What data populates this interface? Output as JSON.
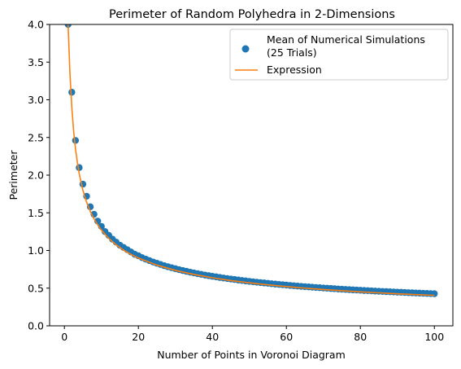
{
  "colors": {
    "scatter": "#1f77b4",
    "line": "#ff7f0e",
    "axes": "#000000",
    "background": "#ffffff"
  },
  "chart_data": {
    "type": "scatter",
    "title": "Perimeter of Random Polyhedra in 2-Dimensions",
    "xlabel": "Number of Points in Voronoi Diagram",
    "ylabel": "Perimeter",
    "xlim": [
      -4,
      105
    ],
    "ylim": [
      0,
      4.0
    ],
    "x_ticks": [
      0,
      20,
      40,
      60,
      80,
      100
    ],
    "x_tick_labels": [
      "0",
      "20",
      "40",
      "60",
      "80",
      "100"
    ],
    "y_ticks": [
      0,
      0.5,
      1.0,
      1.5,
      2.0,
      2.5,
      3.0,
      3.5,
      4.0
    ],
    "y_tick_labels": [
      "0.0",
      "0.5",
      "1.0",
      "1.5",
      "2.0",
      "2.5",
      "3.0",
      "3.5",
      "4.0"
    ],
    "grid": false,
    "legend": {
      "position": "top-right",
      "entries": [
        {
          "label_lines": [
            "Mean of Numerical Simulations",
            "(25 Trials)"
          ],
          "marker": "circle",
          "color": "#1f77b4"
        },
        {
          "label_lines": [
            "Expression"
          ],
          "marker": "line",
          "color": "#ff7f0e"
        }
      ]
    },
    "series": [
      {
        "name": "Mean of Numerical Simulations (25 Trials)",
        "kind": "scatter",
        "color": "#1f77b4",
        "x": [
          1,
          2,
          3,
          4,
          5,
          6,
          7,
          8,
          9,
          10,
          11,
          12,
          13,
          14,
          15,
          16,
          17,
          18,
          19,
          20,
          21,
          22,
          23,
          24,
          25,
          26,
          27,
          28,
          29,
          30,
          31,
          32,
          33,
          34,
          35,
          36,
          37,
          38,
          39,
          40,
          41,
          42,
          43,
          44,
          45,
          46,
          47,
          48,
          49,
          50,
          51,
          52,
          53,
          54,
          55,
          56,
          57,
          58,
          59,
          60,
          61,
          62,
          63,
          64,
          65,
          66,
          67,
          68,
          69,
          70,
          71,
          72,
          73,
          74,
          75,
          76,
          77,
          78,
          79,
          80,
          81,
          82,
          83,
          84,
          85,
          86,
          87,
          88,
          89,
          90,
          91,
          92,
          93,
          94,
          95,
          96,
          97,
          98,
          99,
          100
        ],
        "y": [
          4.0,
          3.1,
          2.46,
          2.1,
          1.88,
          1.72,
          1.58,
          1.48,
          1.39,
          1.32,
          1.25,
          1.2,
          1.15,
          1.11,
          1.07,
          1.04,
          1.01,
          0.98,
          0.95,
          0.93,
          0.905,
          0.885,
          0.865,
          0.847,
          0.83,
          0.814,
          0.798,
          0.784,
          0.771,
          0.758,
          0.745,
          0.734,
          0.723,
          0.712,
          0.702,
          0.692,
          0.683,
          0.674,
          0.666,
          0.657,
          0.65,
          0.642,
          0.635,
          0.628,
          0.621,
          0.615,
          0.608,
          0.602,
          0.596,
          0.59,
          0.585,
          0.579,
          0.574,
          0.569,
          0.564,
          0.559,
          0.554,
          0.549,
          0.545,
          0.541,
          0.536,
          0.532,
          0.528,
          0.524,
          0.52,
          0.517,
          0.513,
          0.509,
          0.506,
          0.502,
          0.499,
          0.496,
          0.493,
          0.489,
          0.486,
          0.483,
          0.48,
          0.477,
          0.475,
          0.472,
          0.469,
          0.467,
          0.464,
          0.461,
          0.459,
          0.456,
          0.454,
          0.452,
          0.449,
          0.447,
          0.445,
          0.443,
          0.44,
          0.438,
          0.436,
          0.434,
          0.432,
          0.43,
          0.428,
          0.426
        ]
      },
      {
        "name": "Expression",
        "kind": "line",
        "color": "#ff7f0e",
        "x": [
          1,
          1.5,
          2,
          2.5,
          3,
          3.5,
          4,
          5,
          6,
          7,
          8,
          9,
          10,
          12,
          14,
          16,
          18,
          20,
          25,
          30,
          35,
          40,
          45,
          50,
          55,
          60,
          65,
          70,
          75,
          80,
          85,
          90,
          95,
          100
        ],
        "y": [
          4.0,
          3.35,
          2.9,
          2.58,
          2.35,
          2.17,
          2.02,
          1.8,
          1.64,
          1.52,
          1.42,
          1.34,
          1.27,
          1.16,
          1.075,
          1.005,
          0.948,
          0.9,
          0.806,
          0.736,
          0.682,
          0.638,
          0.601,
          0.571,
          0.544,
          0.521,
          0.5,
          0.482,
          0.466,
          0.451,
          0.438,
          0.425,
          0.414,
          0.404
        ]
      }
    ]
  }
}
